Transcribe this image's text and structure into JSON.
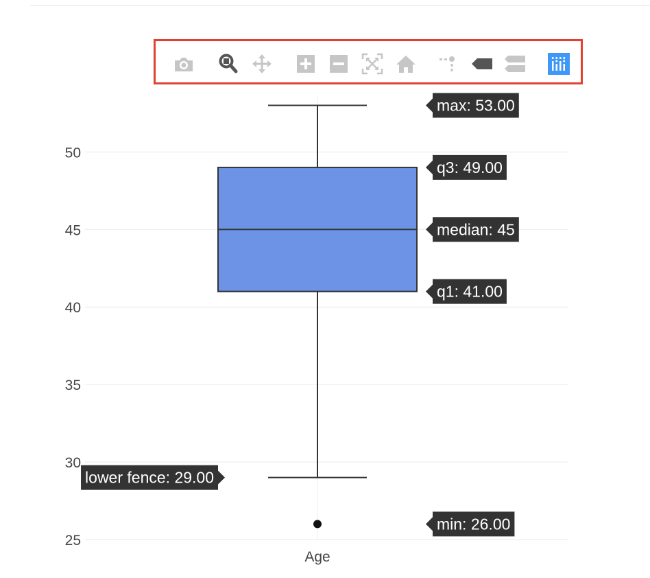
{
  "modebar": {
    "buttons": [
      {
        "name": "camera-icon",
        "active": false
      },
      {
        "name": "zoom-icon",
        "active": true
      },
      {
        "name": "pan-icon",
        "active": false
      },
      {
        "name": "zoom-in-icon",
        "active": false
      },
      {
        "name": "zoom-out-icon",
        "active": false
      },
      {
        "name": "autoscale-icon",
        "active": false
      },
      {
        "name": "home-icon",
        "active": false
      },
      {
        "name": "spike-lines-icon",
        "active": false
      },
      {
        "name": "hover-closest-icon",
        "active": false
      },
      {
        "name": "hover-compare-icon",
        "active": false
      },
      {
        "name": "plotly-logo-icon",
        "active": false
      }
    ],
    "colors": {
      "idle": "#c6c6c6",
      "active": "#555555",
      "logo": "#3f97f6",
      "highlight": "#e2412e"
    }
  },
  "chart_data": {
    "type": "box",
    "categories": [
      "Age"
    ],
    "y_ticks": [
      25,
      30,
      35,
      40,
      45,
      50
    ],
    "ylim": [
      25,
      53.6
    ],
    "grid": true,
    "box": {
      "category": "Age",
      "min": 26,
      "lower_fence": 29,
      "q1": 41,
      "median": 45,
      "q3": 49,
      "upper_fence": 53,
      "max": 53,
      "outliers": [
        26
      ],
      "fill_color": "#6c93e5",
      "line_color": "#333333"
    },
    "hover_labels": [
      {
        "key": "max",
        "text": "max: 53.00",
        "value": 53,
        "side": "right"
      },
      {
        "key": "q3",
        "text": "q3: 49.00",
        "value": 49,
        "side": "right"
      },
      {
        "key": "median",
        "text": "median: 45",
        "value": 45,
        "side": "right"
      },
      {
        "key": "q1",
        "text": "q1: 41.00",
        "value": 41,
        "side": "right"
      },
      {
        "key": "lower_fence",
        "text": "lower fence: 29.00",
        "value": 29,
        "side": "left"
      },
      {
        "key": "min",
        "text": "min: 26.00",
        "value": 26,
        "side": "right"
      }
    ],
    "hover_bg": "#333333"
  }
}
